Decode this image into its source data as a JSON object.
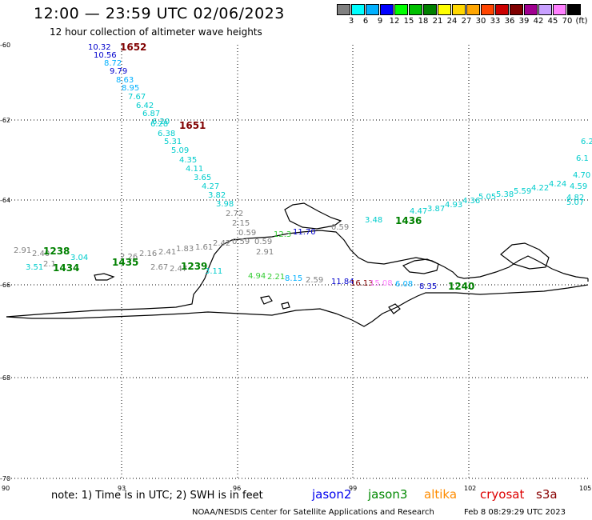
{
  "title": "12:00 — 23:59 UTC 02/06/2023",
  "subtitle": "12 hour collection of altimeter wave heights",
  "colorbar": {
    "colors": [
      "#808080",
      "#00ffff",
      "#00b0ff",
      "#0000ff",
      "#00ff00",
      "#00c000",
      "#008000",
      "#ffff00",
      "#ffd700",
      "#ffa500",
      "#ff4500",
      "#cc0000",
      "#800000",
      "#a00090",
      "#c8a0ff",
      "#ff80ff",
      "#000000"
    ],
    "labels": [
      "3",
      "6",
      "9",
      "12",
      "15",
      "18",
      "21",
      "24",
      "27",
      "30",
      "33",
      "36",
      "39",
      "42",
      "45",
      "70",
      "(ft)"
    ]
  },
  "axes": {
    "lat_labels": [
      "-60",
      "-62",
      "-64",
      "-66",
      "-68",
      "-70"
    ],
    "lon_labels": [
      "90",
      "93",
      "96",
      "99",
      "102",
      "105"
    ]
  },
  "passes": [
    {
      "time": "1652",
      "color": "#800000"
    },
    {
      "time": "1651",
      "color": "#800000"
    },
    {
      "time": "1238",
      "color": "#008000"
    },
    {
      "time": "1434",
      "color": "#008000"
    },
    {
      "time": "1435",
      "color": "#008000"
    },
    {
      "time": "1239",
      "color": "#008000"
    },
    {
      "time": "1436",
      "color": "#008000"
    },
    {
      "time": "1240",
      "color": "#008000"
    }
  ],
  "track_labels": [
    {
      "text": "10.32",
      "color": "#0000cc"
    },
    {
      "text": "10.56",
      "color": "#0000cc"
    },
    {
      "text": "8.72",
      "color": "#00b0ff"
    },
    {
      "text": "9.79",
      "color": "#0000cc"
    },
    {
      "text": "8.63",
      "color": "#00b0ff"
    },
    {
      "text": "8.95",
      "color": "#00b0ff"
    },
    {
      "text": "7.67",
      "color": "#00cccc"
    },
    {
      "text": "6.42",
      "color": "#00cccc"
    },
    {
      "text": "6.87",
      "color": "#00cccc"
    },
    {
      "text": "6.20",
      "color": "#00cccc"
    },
    {
      "text": "6.28",
      "color": "#00cccc"
    },
    {
      "text": "6.38",
      "color": "#00cccc"
    },
    {
      "text": "5.31",
      "color": "#00cccc"
    },
    {
      "text": "5.09",
      "color": "#00cccc"
    },
    {
      "text": "4.35",
      "color": "#00cccc"
    },
    {
      "text": "4.11",
      "color": "#00cccc"
    },
    {
      "text": "3.65",
      "color": "#00cccc"
    },
    {
      "text": "4.27",
      "color": "#00cccc"
    },
    {
      "text": "3.82",
      "color": "#00cccc"
    },
    {
      "text": "3.98",
      "color": "#00cccc"
    },
    {
      "text": "2.72",
      "color": "#808080"
    },
    {
      "text": "2.15",
      "color": "#808080"
    },
    {
      "text": "0.59",
      "color": "#808080"
    },
    {
      "text": "0.59",
      "color": "#808080"
    },
    {
      "text": "2.91",
      "color": "#808080"
    },
    {
      "text": "2.40",
      "color": "#808080"
    },
    {
      "text": "3.51",
      "color": "#00cccc"
    },
    {
      "text": "2.1",
      "color": "#808080"
    },
    {
      "text": "3.04",
      "color": "#00cccc"
    },
    {
      "text": "2.26",
      "color": "#808080"
    },
    {
      "text": "2.16",
      "color": "#808080"
    },
    {
      "text": "2.41",
      "color": "#808080"
    },
    {
      "text": "1.83",
      "color": "#808080"
    },
    {
      "text": "1.61",
      "color": "#808080"
    },
    {
      "text": "2.42",
      "color": "#808080"
    },
    {
      "text": "0.59",
      "color": "#808080"
    },
    {
      "text": "2.67",
      "color": "#808080"
    },
    {
      "text": "2.47",
      "color": "#808080"
    },
    {
      "text": "3.11",
      "color": "#00cccc"
    },
    {
      "text": "2.91",
      "color": "#808080"
    },
    {
      "text": "12.3",
      "color": "#33cc33"
    },
    {
      "text": "11.70",
      "color": "#0000cc"
    },
    {
      "text": "0.59",
      "color": "#808080"
    },
    {
      "text": "4.94",
      "color": "#33cc33"
    },
    {
      "text": "2.21",
      "color": "#33cc33"
    },
    {
      "text": "8.15",
      "color": "#00b0ff"
    },
    {
      "text": "2.59",
      "color": "#808080"
    },
    {
      "text": "11.84",
      "color": "#0000cc"
    },
    {
      "text": "16.13",
      "color": "#800000"
    },
    {
      "text": "15.08",
      "color": "#ff80ff"
    },
    {
      "text": "6.08",
      "color": "#00b0ff"
    },
    {
      "text": "8.35",
      "color": "#0000cc"
    },
    {
      "text": "3.48",
      "color": "#00cccc"
    },
    {
      "text": "4.47",
      "color": "#00cccc"
    },
    {
      "text": "3.87",
      "color": "#00cccc"
    },
    {
      "text": "4.93",
      "color": "#00cccc"
    },
    {
      "text": "4.36",
      "color": "#00cccc"
    },
    {
      "text": "5.05",
      "color": "#00cccc"
    },
    {
      "text": "5.38",
      "color": "#00cccc"
    },
    {
      "text": "5.59",
      "color": "#00cccc"
    },
    {
      "text": "4.22",
      "color": "#00cccc"
    },
    {
      "text": "4.24",
      "color": "#00cccc"
    },
    {
      "text": "4.70",
      "color": "#00cccc"
    },
    {
      "text": "4.59",
      "color": "#00cccc"
    },
    {
      "text": "4.82",
      "color": "#00cccc"
    },
    {
      "text": "5.07",
      "color": "#00cccc"
    },
    {
      "text": "6.1",
      "color": "#00cccc"
    },
    {
      "text": "6.2",
      "color": "#00cccc"
    }
  ],
  "footer": {
    "note": "note: 1) Time is in UTC; 2) SWH is in feet",
    "satellites": [
      {
        "name": "jason2",
        "color": "#0000ee"
      },
      {
        "name": "jason3",
        "color": "#008800"
      },
      {
        "name": "altika",
        "color": "#ff8c00"
      },
      {
        "name": "cryosat",
        "color": "#dd0000"
      },
      {
        "name": "s3a",
        "color": "#880000"
      }
    ],
    "credit": "NOAA/NESDIS Center for Satellite Applications and Research",
    "timestamp": "Feb  8 08:29:29 UTC 2023"
  }
}
